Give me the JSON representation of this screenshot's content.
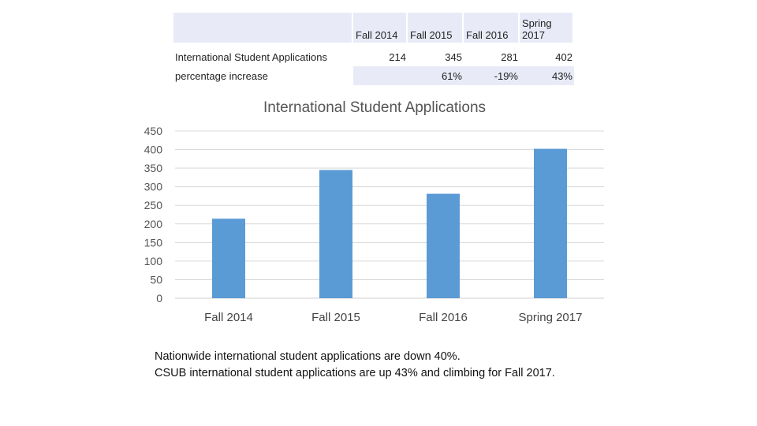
{
  "table": {
    "headers": [
      "Fall 2014",
      "Fall 2015",
      "Fall 2016",
      "Spring 2017"
    ],
    "rows": [
      {
        "label": "International Student Applications",
        "cells": [
          "214",
          "345",
          "281",
          "402"
        ]
      },
      {
        "label": "percentage increase",
        "cells": [
          "",
          "61%",
          "-19%",
          "43%"
        ]
      }
    ]
  },
  "chart_data": {
    "type": "bar",
    "title": "International Student Applications",
    "categories": [
      "Fall 2014",
      "Fall 2015",
      "Fall 2016",
      "Spring 2017"
    ],
    "values": [
      214,
      345,
      281,
      402
    ],
    "ylim": [
      0,
      450
    ],
    "yticks": [
      0,
      50,
      100,
      150,
      200,
      250,
      300,
      350,
      400,
      450
    ],
    "grid": true,
    "bar_color": "#5b9bd5",
    "grid_color": "#d9d9d9"
  },
  "notes": [
    "Nationwide international student applications are down 40%.",
    "CSUB international student applications are up 43% and climbing for Fall 2017."
  ]
}
